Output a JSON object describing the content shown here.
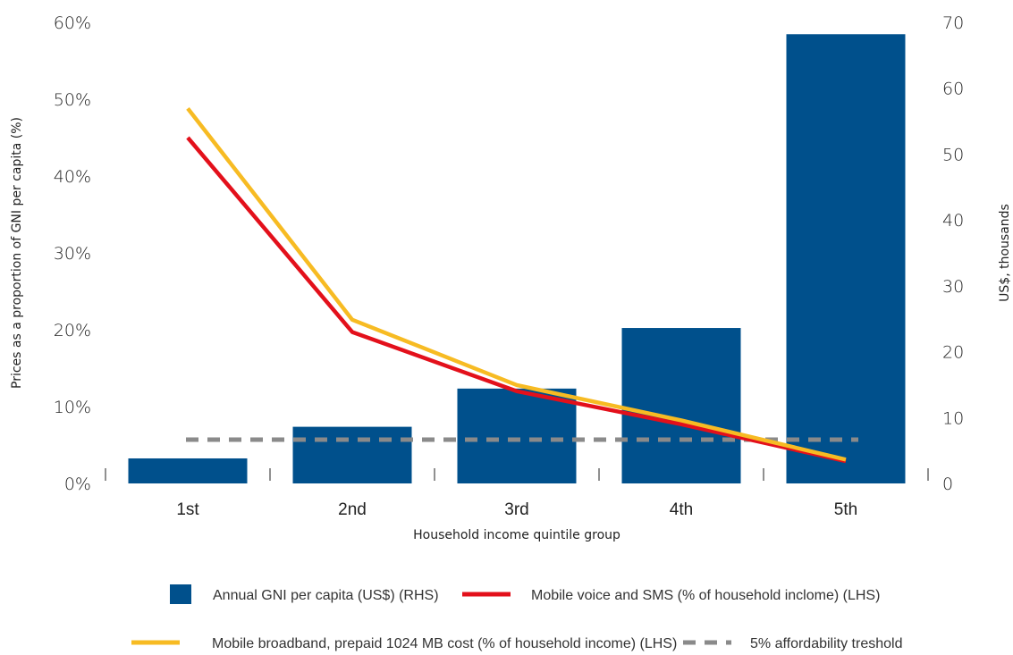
{
  "chart_data": {
    "type": "bar",
    "categories": [
      "1st",
      "2nd",
      "3rd",
      "4th",
      "5th"
    ],
    "xlabel": "Household income quintile group",
    "ylabel_left": "Prices as a proportion of GNI per capita (%)",
    "ylabel_right": "US$, thousands",
    "ylim_left": [
      0,
      60
    ],
    "ylim_right": [
      0,
      70
    ],
    "left_ticks": [
      "0%",
      "10%",
      "20%",
      "30%",
      "40%",
      "50%",
      "60%"
    ],
    "right_ticks": [
      "0",
      "10",
      "20",
      "30",
      "40",
      "50",
      "60",
      "70"
    ],
    "series": [
      {
        "name": "Annual GNI per capita (US$) (RHS)",
        "kind": "bar",
        "axis": "right",
        "color": "#00508c",
        "values": [
          3.8,
          8.6,
          14.4,
          23.6,
          68.2
        ]
      },
      {
        "name": "Mobile voice and SMS (% of household inclome) (LHS)",
        "kind": "line",
        "axis": "left",
        "color": "#e3101b",
        "values": [
          45.0,
          19.7,
          12.0,
          7.7,
          2.9
        ]
      },
      {
        "name": "Mobile broadband, prepaid 1024 MB cost (% of household income) (LHS)",
        "kind": "line",
        "axis": "left",
        "color": "#f7bb23",
        "values": [
          48.8,
          21.3,
          12.8,
          8.2,
          3.1
        ]
      },
      {
        "name": "5% affordability treshold",
        "kind": "dashed",
        "axis": "left",
        "color": "#8a8a8a",
        "values": [
          5,
          5,
          5,
          5,
          5
        ]
      }
    ],
    "grid": false,
    "legend_position": "bottom"
  }
}
